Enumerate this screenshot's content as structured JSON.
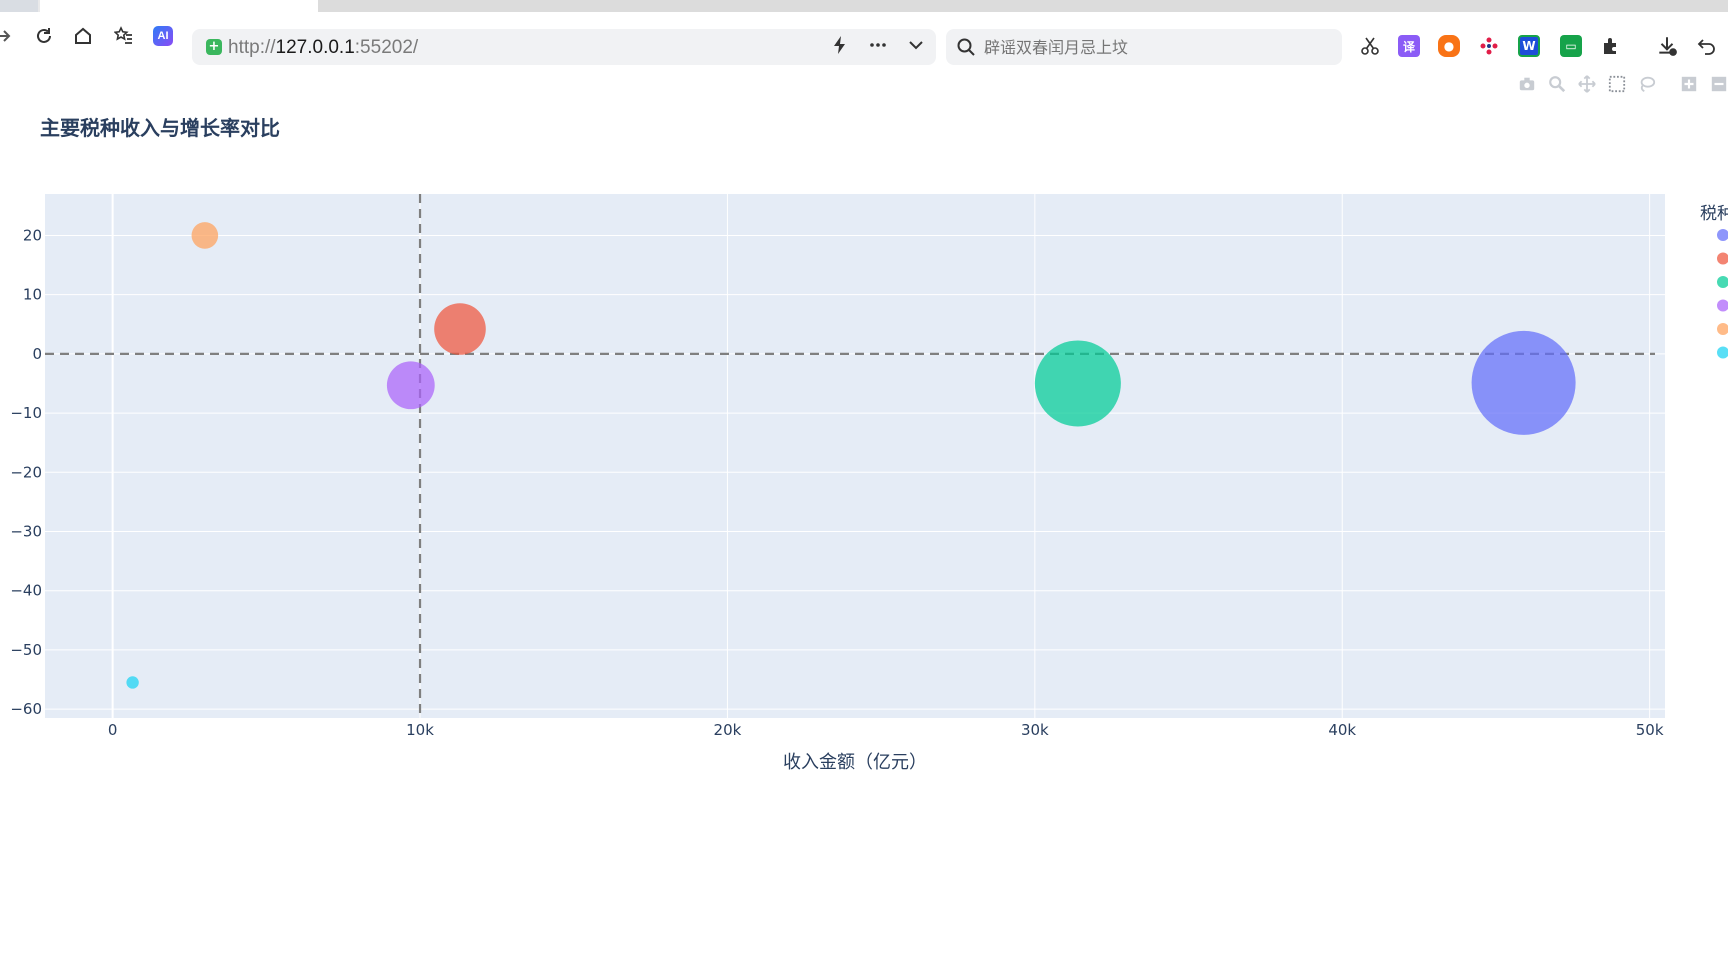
{
  "browser": {
    "url_prefix": "http://",
    "url_host": "127.0.0.1",
    "url_port": ":55202/",
    "search_placeholder": "辟谣双春闰月忌上坟",
    "extensions": [
      "cut-icon",
      "translate-icon",
      "game-icon",
      "puzzle-app-icon",
      "word-icon",
      "reader-icon",
      "extensions-icon",
      "download-icon",
      "undo-icon"
    ]
  },
  "colors": {
    "plot_bg": "#e5ecf6",
    "grid": "#ffffff",
    "axis_text": "#2a3f5f",
    "ref_line": "#7f7f7f"
  },
  "chart_data": {
    "type": "scatter",
    "title": "主要税种收入与增长率对比",
    "xlabel": "收入金额（亿元）",
    "ylabel": "",
    "xlim": [
      -2200,
      50500
    ],
    "ylim": [
      -61.5,
      27
    ],
    "x_ticks": [
      0,
      10000,
      20000,
      30000,
      40000,
      50000
    ],
    "x_tick_labels": [
      "0",
      "10k",
      "20k",
      "30k",
      "40k",
      "50k"
    ],
    "y_ticks": [
      -60,
      -50,
      -40,
      -30,
      -20,
      -10,
      0,
      10,
      20
    ],
    "y_tick_labels": [
      "−60",
      "−50",
      "−40",
      "−30",
      "−20",
      "−10",
      "0",
      "10",
      "20"
    ],
    "reference_lines": {
      "x": 10000,
      "y": 0
    },
    "legend_title": "税种",
    "legend_placement": "right",
    "series": [
      {
        "x": 45900,
        "y": -4.9,
        "size": 45900,
        "color": "#636efa"
      },
      {
        "x": 11300,
        "y": 4.2,
        "size": 11300,
        "color": "#ef553b"
      },
      {
        "x": 31400,
        "y": -5.0,
        "size": 31400,
        "color": "#00cc96"
      },
      {
        "x": 9700,
        "y": -5.3,
        "size": 9700,
        "color": "#ab63fa"
      },
      {
        "x": 3000,
        "y": 20.0,
        "size": 3000,
        "color": "#ffa15a"
      },
      {
        "x": 650,
        "y": -55.5,
        "size": 650,
        "color": "#19d3f3"
      }
    ]
  }
}
